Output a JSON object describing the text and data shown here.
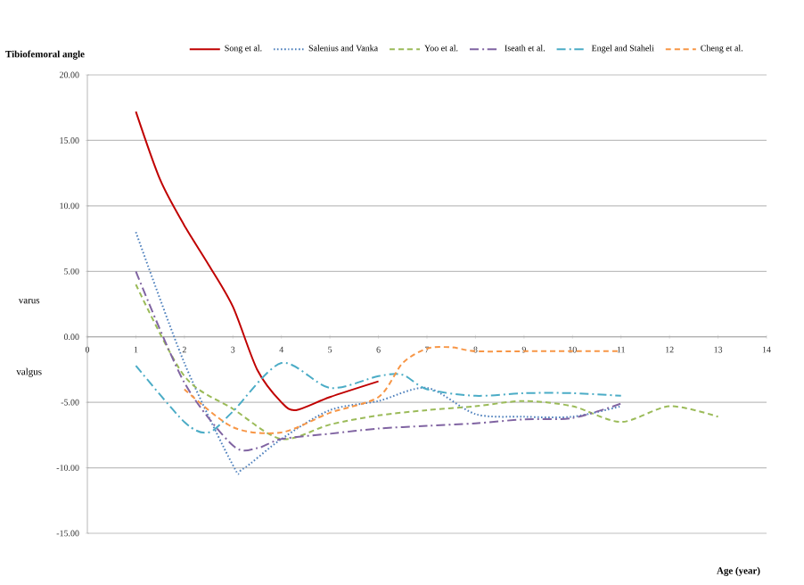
{
  "chart_data": {
    "type": "line",
    "ylabel": "Tibiofemoral  angle",
    "xlabel": "Age (year)",
    "annotations": [
      "varus",
      "valgus"
    ],
    "xlim": [
      0,
      14
    ],
    "xticks": [
      0,
      1,
      2,
      3,
      4,
      5,
      6,
      7,
      8,
      9,
      10,
      11,
      12,
      13,
      14
    ],
    "ylim": [
      -15,
      20
    ],
    "yticks": [
      {
        "value": -15,
        "label": "-15.00"
      },
      {
        "value": -10,
        "label": "-10.00"
      },
      {
        "value": -5,
        "label": "-5.00"
      },
      {
        "value": 0,
        "label": "0.00"
      },
      {
        "value": 5,
        "label": "5.00"
      },
      {
        "value": 10,
        "label": "10.00"
      },
      {
        "value": 15,
        "label": "15.00"
      },
      {
        "value": 20,
        "label": "20.00"
      }
    ],
    "grid": "y",
    "legend": "top",
    "marker": "none",
    "series": [
      {
        "name": "Song et al.",
        "color": "#c00000",
        "line_style": "solid",
        "x": [
          1,
          1.5,
          2,
          2.5,
          3,
          3.5,
          4,
          4.3,
          5,
          6
        ],
        "values": [
          17.2,
          12,
          8.5,
          5.5,
          2.3,
          -2.5,
          -5,
          -5.6,
          -4.6,
          -3.4
        ]
      },
      {
        "name": "Salenius and Vanka",
        "color": "#4f81bd",
        "line_style": "dotted",
        "x": [
          1,
          2,
          3,
          3.2,
          4,
          5,
          6,
          7,
          8,
          9,
          10,
          11
        ],
        "values": [
          8,
          -2,
          -9.8,
          -10.1,
          -7.8,
          -5.6,
          -4.9,
          -3.9,
          -5.9,
          -6.1,
          -6.1,
          -5.3
        ]
      },
      {
        "name": "Yoo et al.",
        "color": "#9bbb59",
        "line_style": "dashed",
        "x": [
          1,
          2,
          3,
          4,
          5,
          6,
          7,
          8,
          9,
          10,
          11,
          12,
          13
        ],
        "values": [
          4,
          -3,
          -5.5,
          -7.8,
          -6.7,
          -6.0,
          -5.6,
          -5.3,
          -4.9,
          -5.3,
          -6.5,
          -5.3,
          -6.1
        ]
      },
      {
        "name": "Iseath et al.",
        "color": "#8064a2",
        "line_style": "dashdot",
        "x": [
          1,
          2,
          3,
          3.5,
          4,
          5,
          6,
          7,
          8,
          9,
          10,
          11
        ],
        "values": [
          5,
          -3.5,
          -8.3,
          -8.5,
          -7.8,
          -7.4,
          -7.0,
          -6.8,
          -6.6,
          -6.3,
          -6.2,
          -5.1
        ]
      },
      {
        "name": "Engel and Staheli",
        "color": "#4bacc6",
        "line_style": "dashdot",
        "x": [
          1,
          2,
          2.5,
          3,
          4,
          5,
          6,
          6.5,
          7,
          8,
          9,
          10,
          11
        ],
        "values": [
          -2.2,
          -6.5,
          -7.3,
          -5.7,
          -2,
          -3.9,
          -3,
          -2.9,
          -4,
          -4.5,
          -4.3,
          -4.3,
          -4.5
        ]
      },
      {
        "name": "Cheng et al.",
        "color": "#f79646",
        "line_style": "dashed",
        "x": [
          2,
          3,
          4,
          5,
          6,
          6.5,
          7,
          7.5,
          8,
          9,
          10,
          11
        ],
        "values": [
          -4,
          -6.9,
          -7.3,
          -5.8,
          -4.6,
          -2,
          -0.9,
          -0.8,
          -1.1,
          -1.1,
          -1.1,
          -1.1
        ]
      }
    ]
  }
}
